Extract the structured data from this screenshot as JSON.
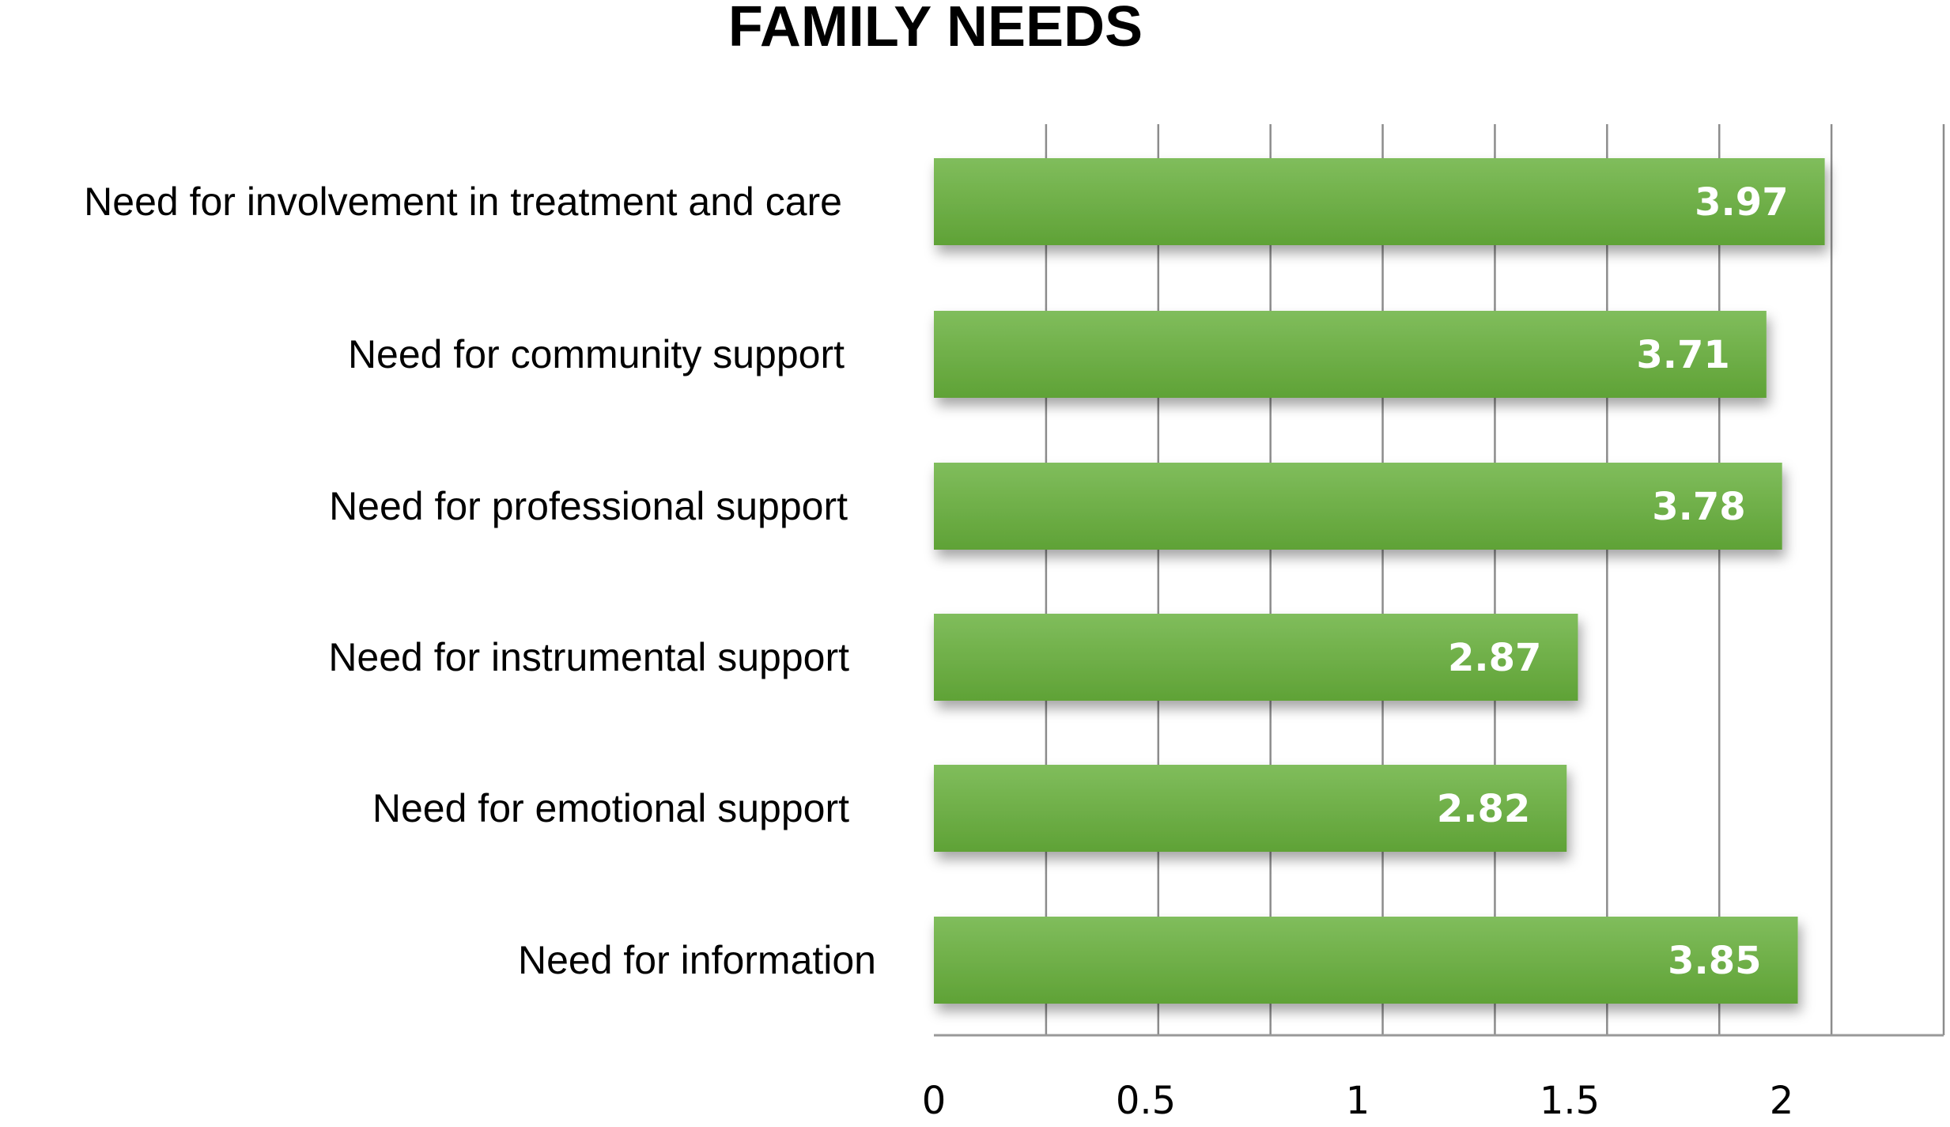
{
  "chart_data": {
    "type": "bar",
    "orientation": "horizontal",
    "title": "FAMILY NEEDS",
    "xlabel": "",
    "ylabel": "",
    "categories": [
      "Need for involvement in treatment and care",
      "Need for community support",
      "Need for professional support",
      "Need for instrumental support",
      "Need for emotional support",
      "Need for information"
    ],
    "values": [
      3.97,
      3.71,
      3.78,
      2.87,
      2.82,
      3.85
    ],
    "value_labels": [
      "3.97",
      "3.71",
      "3.78",
      "2.87",
      "2.82",
      "3.85"
    ],
    "xlim": [
      0,
      4.5
    ],
    "xticks": [
      "0",
      "0.5",
      "1",
      "1.5",
      "2",
      "2.5",
      "3",
      "3.5",
      "4",
      "4.5"
    ],
    "grid": true,
    "legend": "none",
    "colors": {
      "bar": "#6aac44",
      "bar_top": "#7dbb58",
      "grid": "#8c8c8c"
    }
  }
}
